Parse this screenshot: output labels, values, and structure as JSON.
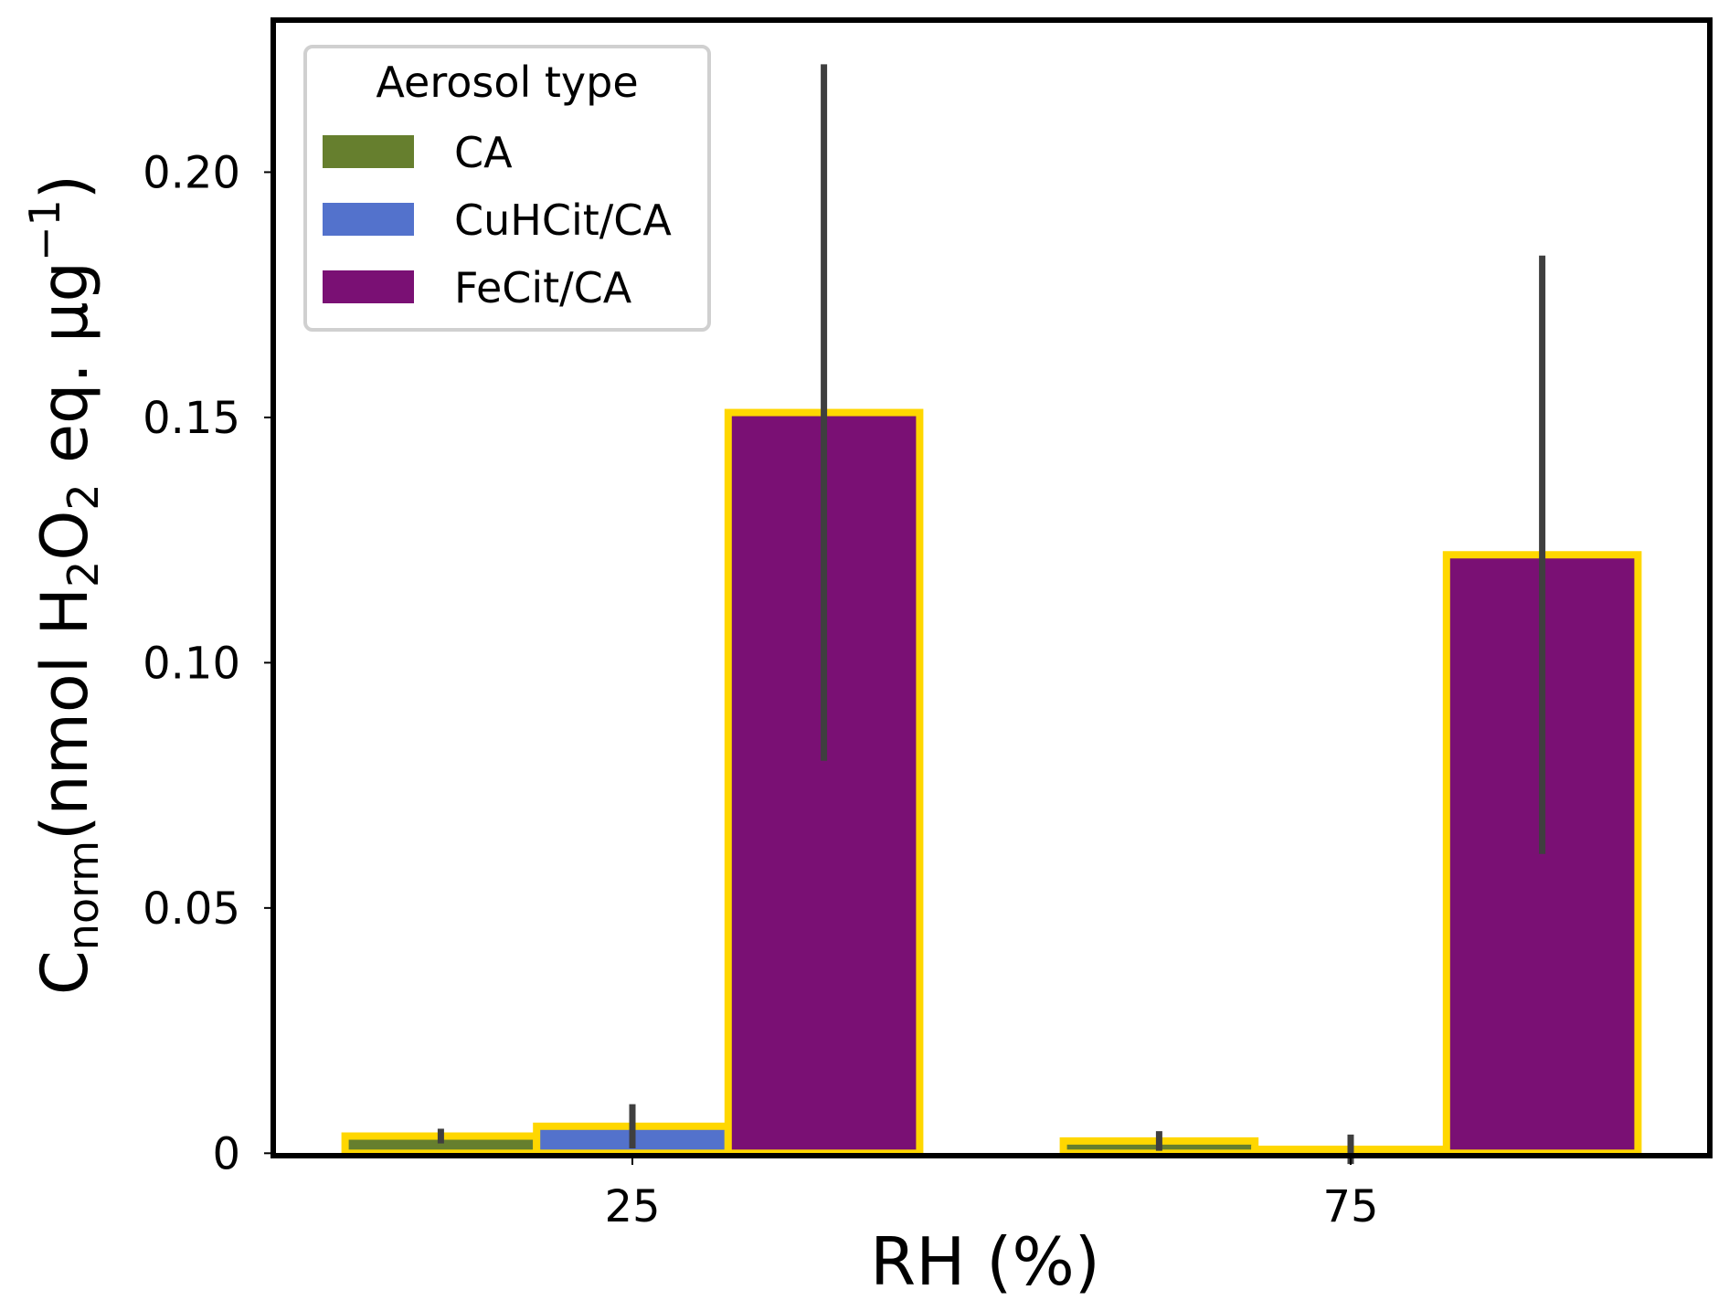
{
  "chart_data": {
    "type": "bar",
    "title": "",
    "xlabel": "RH (%)",
    "ylabel": {
      "main": "C",
      "sub": "norm",
      "open": "(nmol H",
      "sub2": "2",
      "mid": "O",
      "sub3": "2",
      "rest": " eq. µg",
      "sup": "−1",
      "close": ")"
    },
    "categories": [
      "25",
      "75"
    ],
    "ylim": [
      -0.0005,
      0.231
    ],
    "yticks": [
      0,
      0.05,
      0.1,
      0.15,
      0.2
    ],
    "ytick_labels": [
      "0",
      "0.05",
      "0.10",
      "0.15",
      "0.20"
    ],
    "grid": false,
    "legend": {
      "title": "Aerosol type",
      "placement": "top-left"
    },
    "edge_color": "#FFD700",
    "error_color": "#3f3f3f",
    "series": [
      {
        "name": "CA",
        "color": "#667f2e",
        "values": [
          0.0035,
          0.0025
        ],
        "errors": [
          0.0015,
          0.002
        ]
      },
      {
        "name": "CuHCit/CA",
        "color": "#5372cc",
        "values": [
          0.0055,
          0.0008
        ],
        "errors": [
          0.0045,
          0.003
        ]
      },
      {
        "name": "FeCit/CA",
        "color": "#7a1074",
        "values": [
          0.151,
          0.122
        ],
        "errors": [
          0.071,
          0.061
        ]
      }
    ]
  }
}
